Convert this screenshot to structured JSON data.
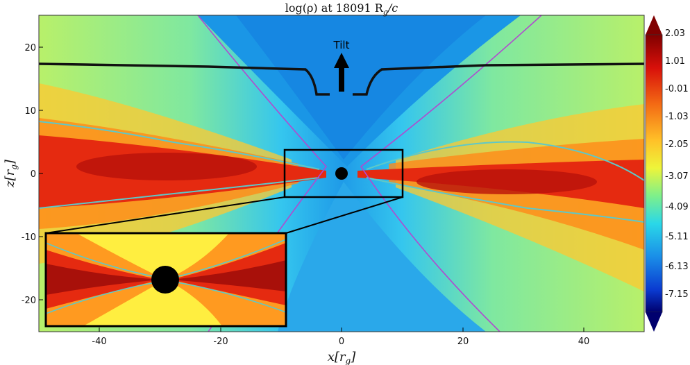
{
  "figure": {
    "title": "log(ρ) at 18091 R",
    "title_sub": "g",
    "title_tail": "/c",
    "xlabel_main": "x[r",
    "xlabel_sub": "g",
    "xlabel_tail": "]",
    "ylabel_main": "z[r",
    "ylabel_sub": "g",
    "ylabel_tail": "]",
    "x_ticks": [
      "-40",
      "-20",
      "0",
      "20",
      "40"
    ],
    "y_ticks": [
      "20",
      "10",
      "0",
      "-10",
      "-20"
    ],
    "annotation": "Tilt",
    "colorbar_ticks": [
      "2.03",
      "1.01",
      "-0.01",
      "-1.03",
      "-2.05",
      "-3.07",
      "-4.09",
      "-5.11",
      "-6.13",
      "-7.15"
    ]
  },
  "colors": {
    "colormap_top": "#800000",
    "colormap_red": "#e61e10",
    "colormap_orange": "#f58a14",
    "colormap_yellow": "#ffef3a",
    "colormap_cyan": "#3fe0d8",
    "colormap_blue": "#0a6fe0",
    "colormap_bottom": "#00006e",
    "density_contour": "#5ec8c8",
    "funnel_contour": "#b04ad0",
    "tilt_line": "#111111"
  }
}
